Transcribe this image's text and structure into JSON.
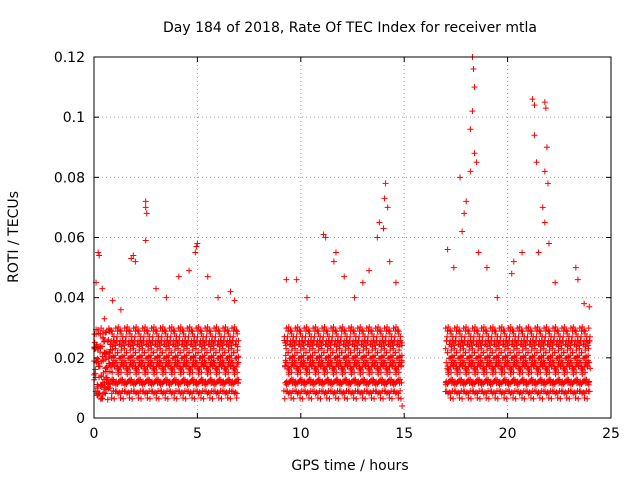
{
  "chart_data": {
    "type": "scatter",
    "title": "Day 184 of 2018, Rate Of TEC Index for receiver mtla",
    "xlabel": "GPS time / hours",
    "ylabel": "ROTI / TECUs",
    "xlim": [
      0,
      25
    ],
    "ylim": [
      0,
      0.12
    ],
    "xticks": [
      0,
      5,
      10,
      15,
      20,
      25
    ],
    "xtick_labels": [
      "0",
      "5",
      "10",
      "15",
      "20",
      "25"
    ],
    "yticks": [
      0,
      0.02,
      0.04,
      0.06,
      0.08,
      0.1,
      0.12
    ],
    "ytick_labels": [
      "0",
      "0.02",
      "0.04",
      "0.06",
      "0.08",
      "0.1",
      "0.12"
    ],
    "grid": true,
    "marker": "plus",
    "color": "#ff0000",
    "coverage_segments": [
      {
        "start": 0.0,
        "end": 7.0
      },
      {
        "start": 9.2,
        "end": 14.9
      },
      {
        "start": 17.0,
        "end": 24.0
      }
    ],
    "typical_range": [
      0.006,
      0.03
    ],
    "series": [
      {
        "name": "ROTI",
        "points": [
          [
            0.1,
            0.045
          ],
          [
            0.2,
            0.055
          ],
          [
            0.25,
            0.054
          ],
          [
            0.4,
            0.043
          ],
          [
            0.5,
            0.033
          ],
          [
            0.9,
            0.039
          ],
          [
            1.3,
            0.036
          ],
          [
            1.8,
            0.053
          ],
          [
            1.9,
            0.054
          ],
          [
            2.0,
            0.052
          ],
          [
            2.5,
            0.072
          ],
          [
            2.5,
            0.07
          ],
          [
            2.55,
            0.068
          ],
          [
            2.5,
            0.059
          ],
          [
            3.0,
            0.043
          ],
          [
            3.5,
            0.04
          ],
          [
            4.1,
            0.047
          ],
          [
            4.6,
            0.049
          ],
          [
            4.9,
            0.055
          ],
          [
            4.95,
            0.057
          ],
          [
            5.0,
            0.058
          ],
          [
            5.5,
            0.047
          ],
          [
            6.0,
            0.04
          ],
          [
            6.6,
            0.042
          ],
          [
            6.8,
            0.039
          ],
          [
            9.3,
            0.046
          ],
          [
            9.8,
            0.046
          ],
          [
            10.3,
            0.04
          ],
          [
            11.1,
            0.061
          ],
          [
            11.2,
            0.06
          ],
          [
            11.6,
            0.052
          ],
          [
            11.7,
            0.055
          ],
          [
            12.1,
            0.047
          ],
          [
            12.6,
            0.04
          ],
          [
            13.0,
            0.045
          ],
          [
            13.3,
            0.049
          ],
          [
            13.7,
            0.06
          ],
          [
            13.8,
            0.065
          ],
          [
            14.0,
            0.063
          ],
          [
            14.05,
            0.073
          ],
          [
            14.1,
            0.078
          ],
          [
            14.2,
            0.07
          ],
          [
            14.3,
            0.052
          ],
          [
            14.6,
            0.045
          ],
          [
            14.9,
            0.004
          ],
          [
            17.1,
            0.056
          ],
          [
            17.4,
            0.05
          ],
          [
            17.7,
            0.08
          ],
          [
            17.8,
            0.062
          ],
          [
            17.9,
            0.068
          ],
          [
            18.0,
            0.072
          ],
          [
            18.2,
            0.082
          ],
          [
            18.3,
            0.12
          ],
          [
            18.35,
            0.116
          ],
          [
            18.4,
            0.11
          ],
          [
            18.2,
            0.096
          ],
          [
            18.3,
            0.102
          ],
          [
            18.4,
            0.088
          ],
          [
            18.5,
            0.085
          ],
          [
            18.6,
            0.055
          ],
          [
            19.0,
            0.05
          ],
          [
            19.5,
            0.04
          ],
          [
            20.2,
            0.048
          ],
          [
            20.3,
            0.052
          ],
          [
            20.7,
            0.055
          ],
          [
            21.2,
            0.106
          ],
          [
            21.3,
            0.104
          ],
          [
            21.3,
            0.094
          ],
          [
            21.4,
            0.085
          ],
          [
            21.5,
            0.055
          ],
          [
            21.8,
            0.105
          ],
          [
            21.85,
            0.103
          ],
          [
            21.9,
            0.09
          ],
          [
            21.8,
            0.082
          ],
          [
            21.95,
            0.078
          ],
          [
            21.7,
            0.07
          ],
          [
            21.8,
            0.065
          ],
          [
            22.0,
            0.058
          ],
          [
            22.3,
            0.045
          ],
          [
            23.3,
            0.05
          ],
          [
            23.4,
            0.046
          ],
          [
            23.7,
            0.038
          ],
          [
            23.95,
            0.037
          ]
        ]
      }
    ]
  }
}
